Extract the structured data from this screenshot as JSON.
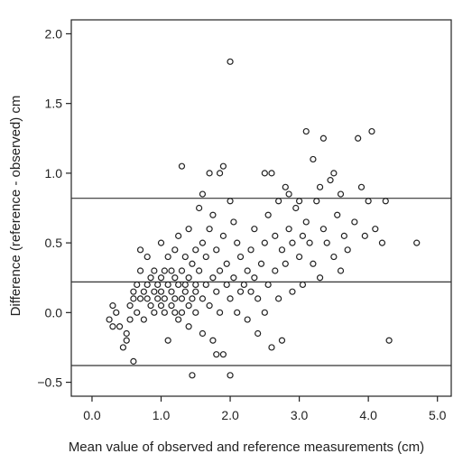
{
  "chart_data": {
    "type": "scatter",
    "title": "",
    "xlabel": "Mean value of observed and reference measurements (cm)",
    "ylabel": "Difference (reference - observed) cm",
    "xlim": [
      -0.3,
      5.2
    ],
    "ylim": [
      -0.6,
      2.1
    ],
    "xticks": [
      "0.0",
      "1.0",
      "2.0",
      "3.0",
      "4.0",
      "5.0"
    ],
    "yticks": [
      "-0.5",
      "0.0",
      "0.5",
      "1.0",
      "1.5",
      "2.0"
    ],
    "grid": false,
    "marker": "open-circle",
    "reference_lines": [
      0.82,
      0.22,
      -0.38
    ],
    "series": [
      {
        "points": [
          [
            0.25,
            -0.05
          ],
          [
            0.3,
            0.05
          ],
          [
            0.3,
            -0.1
          ],
          [
            0.35,
            0.0
          ],
          [
            0.4,
            -0.1
          ],
          [
            0.45,
            -0.25
          ],
          [
            0.5,
            -0.2
          ],
          [
            0.5,
            -0.15
          ],
          [
            0.55,
            0.05
          ],
          [
            0.55,
            -0.05
          ],
          [
            0.6,
            -0.35
          ],
          [
            0.6,
            0.1
          ],
          [
            0.6,
            0.15
          ],
          [
            0.65,
            0.2
          ],
          [
            0.65,
            0.0
          ],
          [
            0.7,
            0.3
          ],
          [
            0.7,
            0.45
          ],
          [
            0.7,
            0.1
          ],
          [
            0.75,
            0.15
          ],
          [
            0.75,
            -0.05
          ],
          [
            0.8,
            0.2
          ],
          [
            0.8,
            0.1
          ],
          [
            0.8,
            0.4
          ],
          [
            0.85,
            0.05
          ],
          [
            0.85,
            0.25
          ],
          [
            0.9,
            0.0
          ],
          [
            0.9,
            0.15
          ],
          [
            0.9,
            0.3
          ],
          [
            0.95,
            0.1
          ],
          [
            0.95,
            0.2
          ],
          [
            1.0,
            0.05
          ],
          [
            1.0,
            0.25
          ],
          [
            1.0,
            0.5
          ],
          [
            1.0,
            0.15
          ],
          [
            1.05,
            0.0
          ],
          [
            1.05,
            0.3
          ],
          [
            1.05,
            0.1
          ],
          [
            1.1,
            0.2
          ],
          [
            1.1,
            -0.2
          ],
          [
            1.1,
            0.4
          ],
          [
            1.15,
            0.05
          ],
          [
            1.15,
            0.15
          ],
          [
            1.15,
            0.3
          ],
          [
            1.2,
            0.0
          ],
          [
            1.2,
            0.25
          ],
          [
            1.2,
            0.1
          ],
          [
            1.2,
            0.45
          ],
          [
            1.25,
            0.2
          ],
          [
            1.25,
            -0.05
          ],
          [
            1.25,
            0.55
          ],
          [
            1.3,
            0.1
          ],
          [
            1.3,
            0.3
          ],
          [
            1.3,
            0.0
          ],
          [
            1.3,
            1.05
          ],
          [
            1.35,
            0.2
          ],
          [
            1.35,
            0.4
          ],
          [
            1.35,
            0.15
          ],
          [
            1.4,
            -0.1
          ],
          [
            1.4,
            0.05
          ],
          [
            1.4,
            0.25
          ],
          [
            1.4,
            0.6
          ],
          [
            1.45,
            0.1
          ],
          [
            1.45,
            0.35
          ],
          [
            1.45,
            -0.45
          ],
          [
            1.5,
            0.2
          ],
          [
            1.5,
            0.0
          ],
          [
            1.5,
            0.45
          ],
          [
            1.5,
            0.15
          ],
          [
            1.55,
            0.75
          ],
          [
            1.55,
            0.3
          ],
          [
            1.6,
            0.85
          ],
          [
            1.6,
            0.1
          ],
          [
            1.6,
            0.5
          ],
          [
            1.6,
            -0.15
          ],
          [
            1.65,
            0.2
          ],
          [
            1.65,
            0.4
          ],
          [
            1.7,
            0.05
          ],
          [
            1.7,
            0.6
          ],
          [
            1.7,
            1.0
          ],
          [
            1.75,
            0.25
          ],
          [
            1.75,
            0.7
          ],
          [
            1.75,
            -0.2
          ],
          [
            1.8,
            0.15
          ],
          [
            1.8,
            0.45
          ],
          [
            1.8,
            -0.3
          ],
          [
            1.85,
            1.0
          ],
          [
            1.85,
            0.3
          ],
          [
            1.85,
            0.0
          ],
          [
            1.9,
            1.05
          ],
          [
            1.9,
            0.55
          ],
          [
            1.9,
            -0.3
          ],
          [
            1.95,
            0.2
          ],
          [
            1.95,
            0.35
          ],
          [
            2.0,
            1.8
          ],
          [
            2.0,
            0.8
          ],
          [
            2.0,
            0.1
          ],
          [
            2.0,
            -0.45
          ],
          [
            2.05,
            0.65
          ],
          [
            2.05,
            0.25
          ],
          [
            2.1,
            0.5
          ],
          [
            2.1,
            0.0
          ],
          [
            2.15,
            0.15
          ],
          [
            2.15,
            0.4
          ],
          [
            2.2,
            0.2
          ],
          [
            2.25,
            0.3
          ],
          [
            2.25,
            -0.05
          ],
          [
            2.3,
            0.45
          ],
          [
            2.3,
            0.15
          ],
          [
            2.35,
            0.6
          ],
          [
            2.35,
            0.25
          ],
          [
            2.4,
            0.1
          ],
          [
            2.4,
            -0.15
          ],
          [
            2.45,
            0.35
          ],
          [
            2.5,
            0.5
          ],
          [
            2.5,
            1.0
          ],
          [
            2.5,
            0.0
          ],
          [
            2.55,
            0.2
          ],
          [
            2.55,
            0.7
          ],
          [
            2.6,
            1.0
          ],
          [
            2.6,
            -0.25
          ],
          [
            2.65,
            0.3
          ],
          [
            2.65,
            0.55
          ],
          [
            2.7,
            0.1
          ],
          [
            2.7,
            0.8
          ],
          [
            2.75,
            0.45
          ],
          [
            2.75,
            -0.2
          ],
          [
            2.8,
            0.9
          ],
          [
            2.8,
            0.35
          ],
          [
            2.85,
            0.6
          ],
          [
            2.85,
            0.85
          ],
          [
            2.9,
            0.15
          ],
          [
            2.9,
            0.5
          ],
          [
            2.95,
            0.75
          ],
          [
            3.0,
            0.4
          ],
          [
            3.0,
            0.8
          ],
          [
            3.05,
            0.55
          ],
          [
            3.05,
            0.2
          ],
          [
            3.1,
            1.3
          ],
          [
            3.1,
            0.65
          ],
          [
            3.15,
            0.5
          ],
          [
            3.2,
            1.1
          ],
          [
            3.2,
            0.35
          ],
          [
            3.25,
            0.8
          ],
          [
            3.3,
            0.9
          ],
          [
            3.3,
            0.25
          ],
          [
            3.35,
            1.25
          ],
          [
            3.35,
            0.6
          ],
          [
            3.4,
            0.5
          ],
          [
            3.45,
            0.95
          ],
          [
            3.5,
            0.4
          ],
          [
            3.5,
            1.0
          ],
          [
            3.55,
            0.7
          ],
          [
            3.6,
            0.85
          ],
          [
            3.6,
            0.3
          ],
          [
            3.65,
            0.55
          ],
          [
            3.7,
            0.45
          ],
          [
            3.8,
            0.65
          ],
          [
            3.85,
            1.25
          ],
          [
            3.9,
            0.9
          ],
          [
            3.95,
            0.55
          ],
          [
            4.0,
            0.8
          ],
          [
            4.05,
            1.3
          ],
          [
            4.1,
            0.6
          ],
          [
            4.2,
            0.5
          ],
          [
            4.25,
            0.8
          ],
          [
            4.3,
            -0.2
          ],
          [
            4.7,
            0.5
          ]
        ]
      }
    ]
  }
}
